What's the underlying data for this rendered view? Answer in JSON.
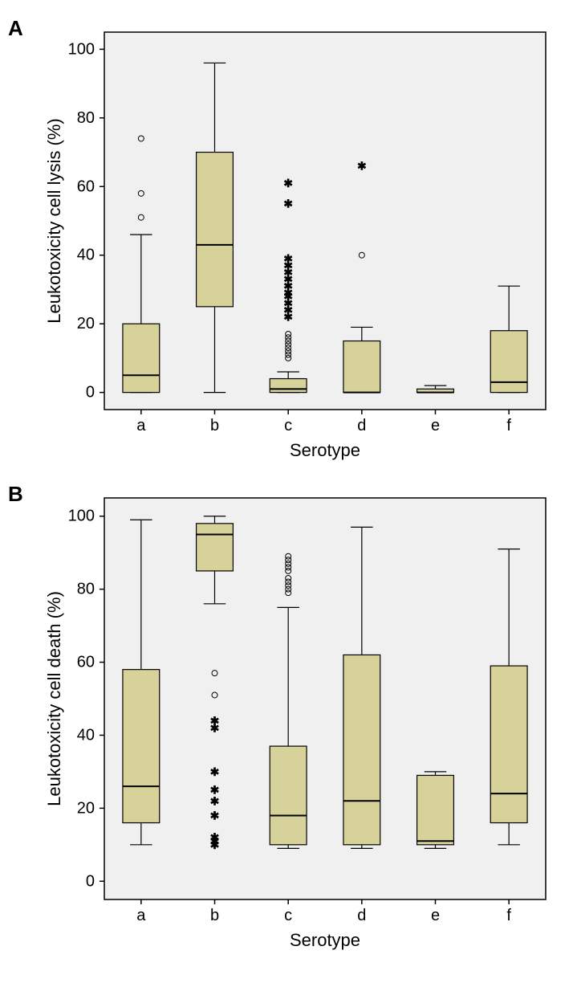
{
  "panelA": {
    "label": "A",
    "ylabel": "Leukotoxicity cell lysis (%)",
    "xlabel": "Serotype",
    "ylim": [
      -5,
      105
    ],
    "yticks": [
      0,
      20,
      40,
      60,
      80,
      100
    ],
    "categories": [
      "a",
      "b",
      "c",
      "d",
      "e",
      "f"
    ],
    "bg": "#f0f0f0",
    "box_fill": "#d7d29a",
    "box_width": 0.5,
    "boxes": [
      {
        "q1": 0,
        "median": 5,
        "q3": 20,
        "wl": 0,
        "wu": 46,
        "outliers_circle": [
          51,
          58,
          74
        ],
        "outliers_star": []
      },
      {
        "q1": 25,
        "median": 43,
        "q3": 70,
        "wl": 0,
        "wu": 96,
        "outliers_circle": [],
        "outliers_star": []
      },
      {
        "q1": 0,
        "median": 1,
        "q3": 4,
        "wl": 0,
        "wu": 6,
        "outliers_circle": [
          10,
          11,
          12,
          13,
          14,
          15,
          16,
          17
        ],
        "outliers_star": [
          22,
          24,
          26,
          28,
          29,
          31,
          33,
          35,
          37,
          39,
          55,
          61
        ]
      },
      {
        "q1": 0,
        "median": 0,
        "q3": 15,
        "wl": 0,
        "wu": 19,
        "outliers_circle": [
          40
        ],
        "outliers_star": [
          66
        ]
      },
      {
        "q1": 0,
        "median": 0,
        "q3": 1,
        "wl": 0,
        "wu": 2,
        "outliers_circle": [],
        "outliers_star": []
      },
      {
        "q1": 0,
        "median": 3,
        "q3": 18,
        "wl": 0,
        "wu": 31,
        "outliers_circle": [],
        "outliers_star": []
      }
    ]
  },
  "panelB": {
    "label": "B",
    "ylabel": "Leukotoxicity cell death (%)",
    "xlabel": "Serotype",
    "ylim": [
      -5,
      105
    ],
    "yticks": [
      0,
      20,
      40,
      60,
      80,
      100
    ],
    "categories": [
      "a",
      "b",
      "c",
      "d",
      "e",
      "f"
    ],
    "bg": "#f0f0f0",
    "box_fill": "#d7d29a",
    "box_width": 0.5,
    "boxes": [
      {
        "q1": 16,
        "median": 26,
        "q3": 58,
        "wl": 10,
        "wu": 99,
        "outliers_circle": [],
        "outliers_star": []
      },
      {
        "q1": 85,
        "median": 95,
        "q3": 98,
        "wl": 76,
        "wu": 100,
        "outliers_circle": [
          51,
          57
        ],
        "outliers_star": [
          10,
          11,
          12,
          18,
          22,
          25,
          30,
          42,
          44
        ]
      },
      {
        "q1": 10,
        "median": 18,
        "q3": 37,
        "wl": 9,
        "wu": 75,
        "outliers_circle": [
          79,
          80,
          81,
          82,
          83,
          85,
          86,
          87,
          88,
          89
        ],
        "outliers_star": []
      },
      {
        "q1": 10,
        "median": 22,
        "q3": 62,
        "wl": 9,
        "wu": 97,
        "outliers_circle": [],
        "outliers_star": []
      },
      {
        "q1": 10,
        "median": 11,
        "q3": 29,
        "wl": 9,
        "wu": 30,
        "outliers_circle": [],
        "outliers_star": []
      },
      {
        "q1": 16,
        "median": 24,
        "q3": 59,
        "wl": 10,
        "wu": 91,
        "outliers_circle": [],
        "outliers_star": []
      }
    ]
  }
}
